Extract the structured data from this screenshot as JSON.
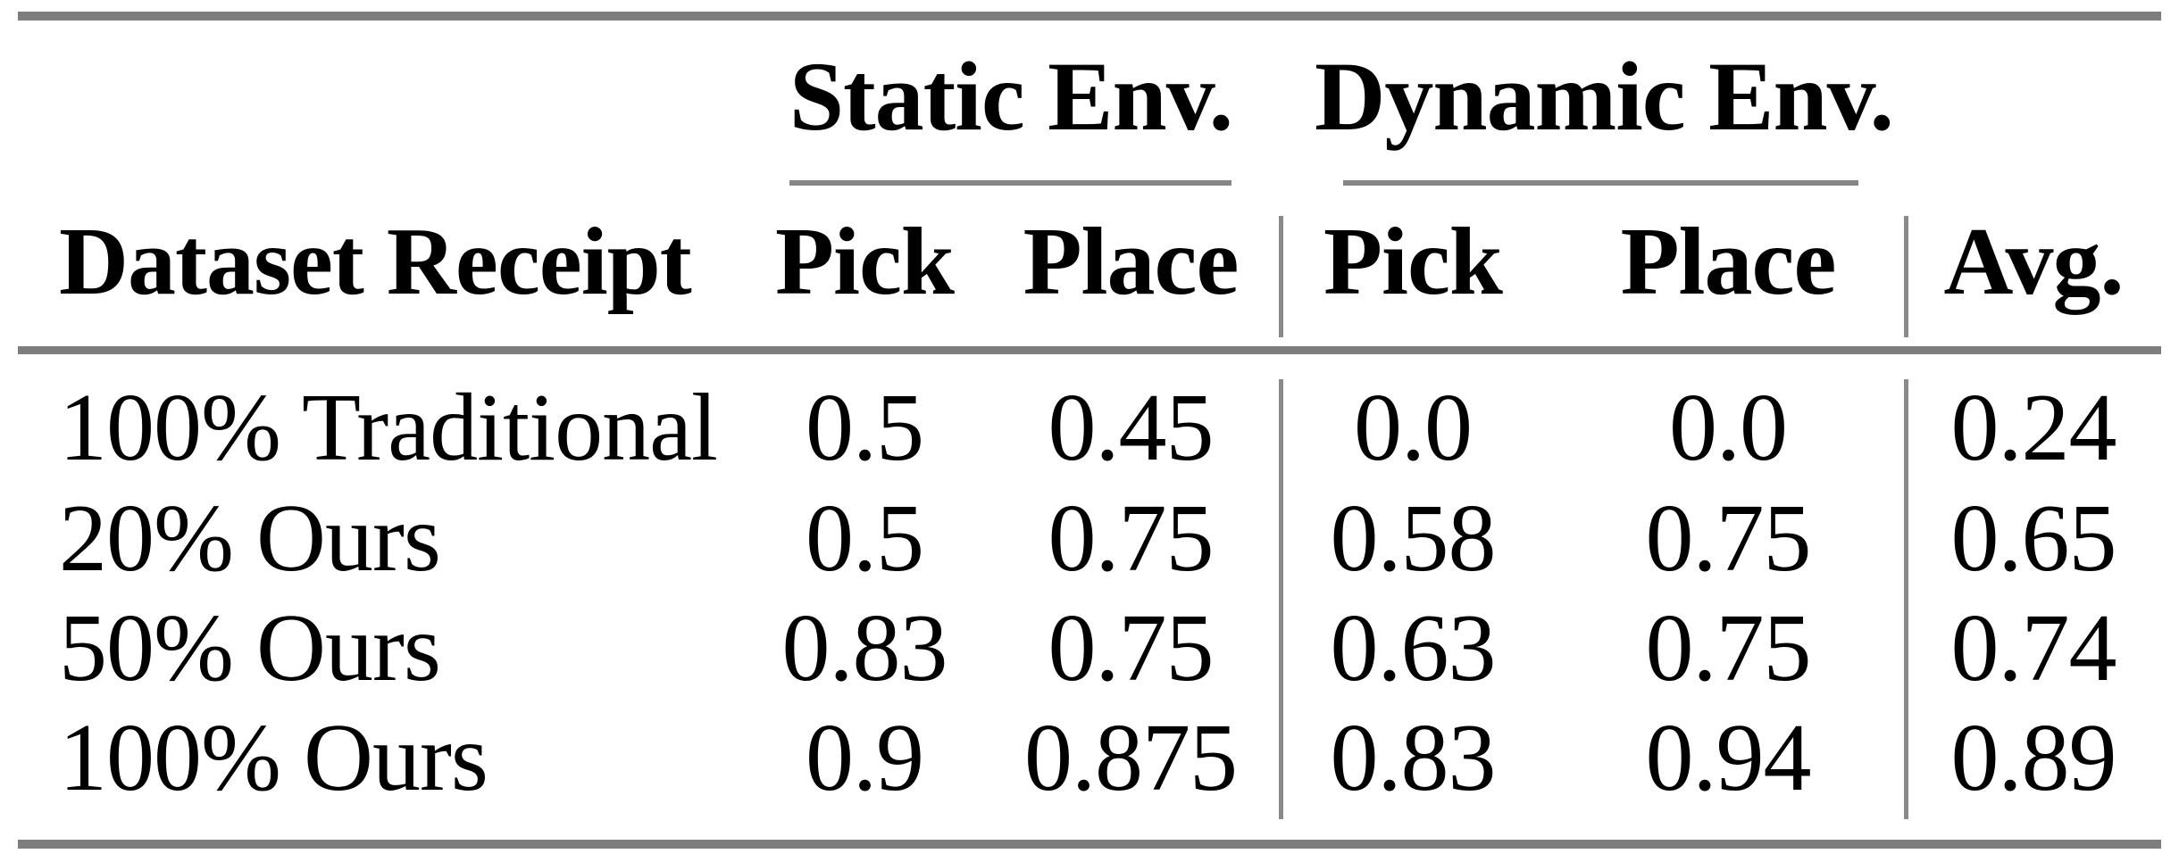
{
  "table": {
    "group_headers": [
      {
        "label": "Static Env."
      },
      {
        "label": "Dynamic Env."
      }
    ],
    "columns": {
      "row_header": "Dataset Receipt",
      "static_pick": "Pick",
      "static_place": "Place",
      "dynamic_pick": "Pick",
      "dynamic_place": "Place",
      "avg": "Avg."
    },
    "rows": [
      {
        "label": "100% Traditional",
        "cells": [
          "0.5",
          "0.45",
          "0.0",
          "0.0",
          "0.24"
        ]
      },
      {
        "label": "20% Ours",
        "cells": [
          "0.5",
          "0.75",
          "0.58",
          "0.75",
          "0.65"
        ]
      },
      {
        "label": "50% Ours",
        "cells": [
          "0.83",
          "0.75",
          "0.63",
          "0.75",
          "0.74"
        ]
      },
      {
        "label": "100% Ours",
        "cells": [
          "0.9",
          "0.875",
          "0.83",
          "0.94",
          "0.89"
        ]
      }
    ]
  },
  "colors": {
    "background": "#ffffff",
    "text": "#000000",
    "thick_rule_gray": "#7e7e7e",
    "thin_rule_gray": "#868686"
  }
}
